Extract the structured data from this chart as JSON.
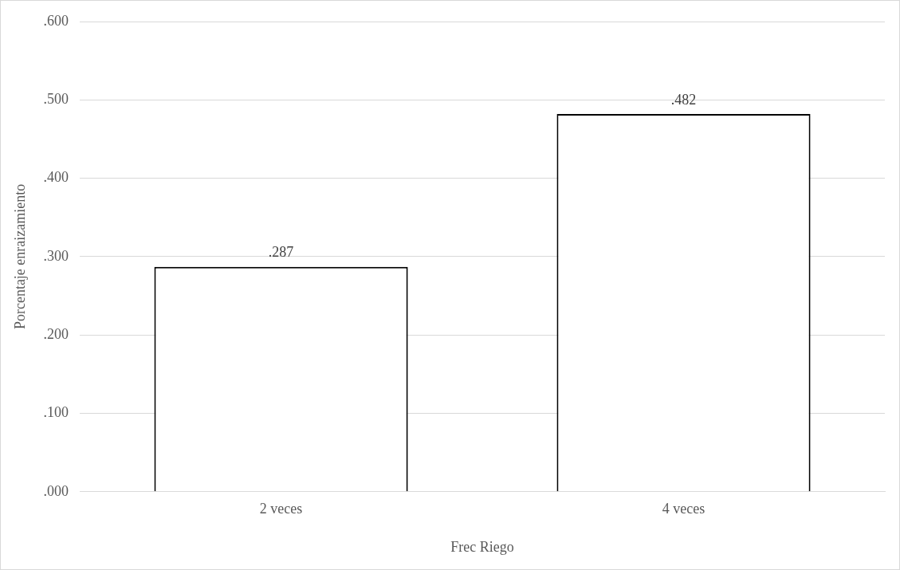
{
  "chart_data": {
    "type": "bar",
    "xlabel": "Frec Riego",
    "ylabel": "Porcentaje enraizamiento",
    "categories": [
      "2 veces",
      "4 veces"
    ],
    "values": [
      0.287,
      0.482
    ],
    "color": "#ffffff",
    "value_labels": [
      ".287",
      ".482"
    ],
    "ylim": [
      0,
      0.6
    ],
    "yticks": [
      {
        "value": 0,
        "label": ".000"
      },
      {
        "value": 0.1,
        "label": ".100"
      },
      {
        "value": 0.2,
        "label": ".200"
      },
      {
        "value": 0.3,
        "label": ".300"
      },
      {
        "value": 0.4,
        "label": ".400"
      },
      {
        "value": 0.5,
        "label": ".500"
      },
      {
        "value": 0.6,
        "label": ".600"
      }
    ],
    "grid": "y",
    "legend": false
  }
}
